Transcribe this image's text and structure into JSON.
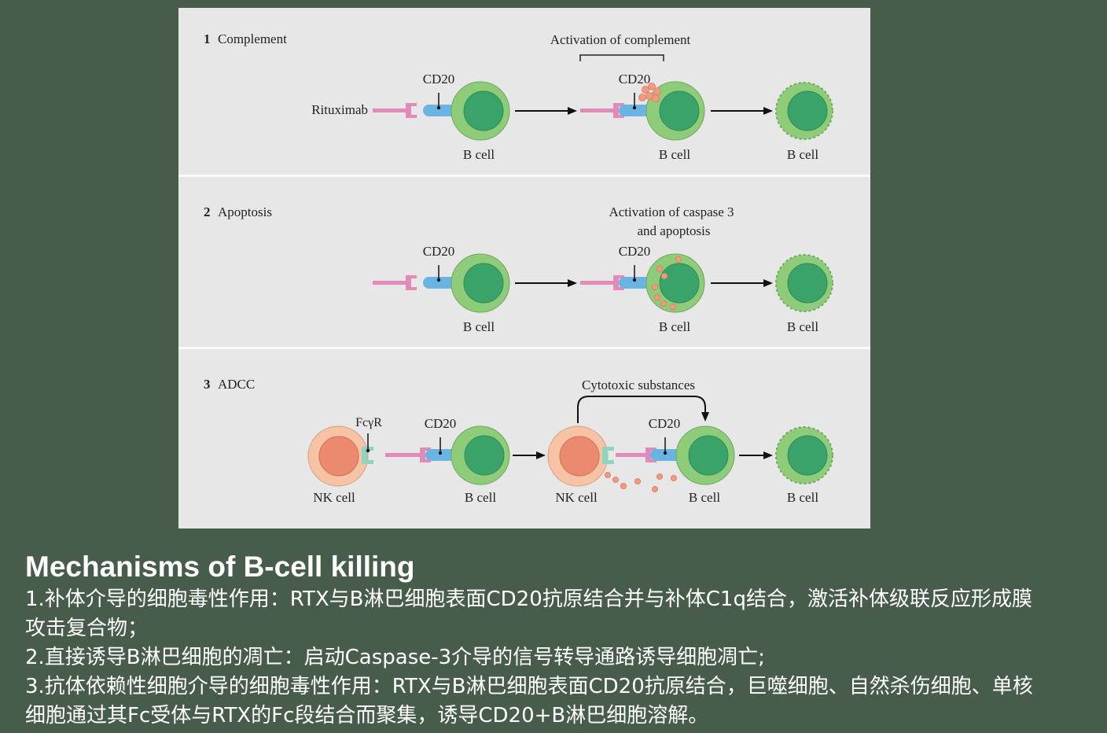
{
  "figure": {
    "panels": [
      {
        "number": "1",
        "title": "Complement",
        "drug_label": "Rituximab",
        "cd20_label": "CD20",
        "cell_label": "B cell",
        "activation_label_line1": "Activation of complement",
        "activation_label_line2": ""
      },
      {
        "number": "2",
        "title": "Apoptosis",
        "cd20_label": "CD20",
        "cell_label": "B cell",
        "activation_label_line1": "Activation of caspase 3",
        "activation_label_line2": "and apoptosis"
      },
      {
        "number": "3",
        "title": "ADCC",
        "cd20_label": "CD20",
        "cell_label": "B cell",
        "nk_label": "NK cell",
        "fc_label": "FcγR",
        "activation_label_line1": "Cytotoxic substances"
      }
    ]
  },
  "caption": {
    "title": "Mechanisms of B-cell killing",
    "lines": [
      "1.补体介导的细胞毒性作用：RTX与B淋巴细胞表面CD20抗原结合并与补体C1q结合，激活补体级联反应形成膜攻击复合物；",
      "2.直接诱导B淋巴细胞的凋亡：启动Caspase-3介导的信号转导通路诱导细胞凋亡;",
      "3.抗体依赖性细胞介导的细胞毒性作用：RTX与B淋巴细胞表面CD20抗原结合，巨噬细胞、自然杀伤细胞、单核细胞通过其Fc受体与RTX的Fc段结合而聚集，诱导CD20+B淋巴细胞溶解。"
    ]
  },
  "colors": {
    "cell_outer": "#8fcc7a",
    "cell_inner": "#3aa36a",
    "cd20": "#6ab4e4",
    "antibody": "#e48ab8",
    "nk_outer": "#f7c3a5",
    "nk_inner": "#ec8a70",
    "fc_receptor": "#8fd3c1",
    "particles": "#f29a80"
  }
}
